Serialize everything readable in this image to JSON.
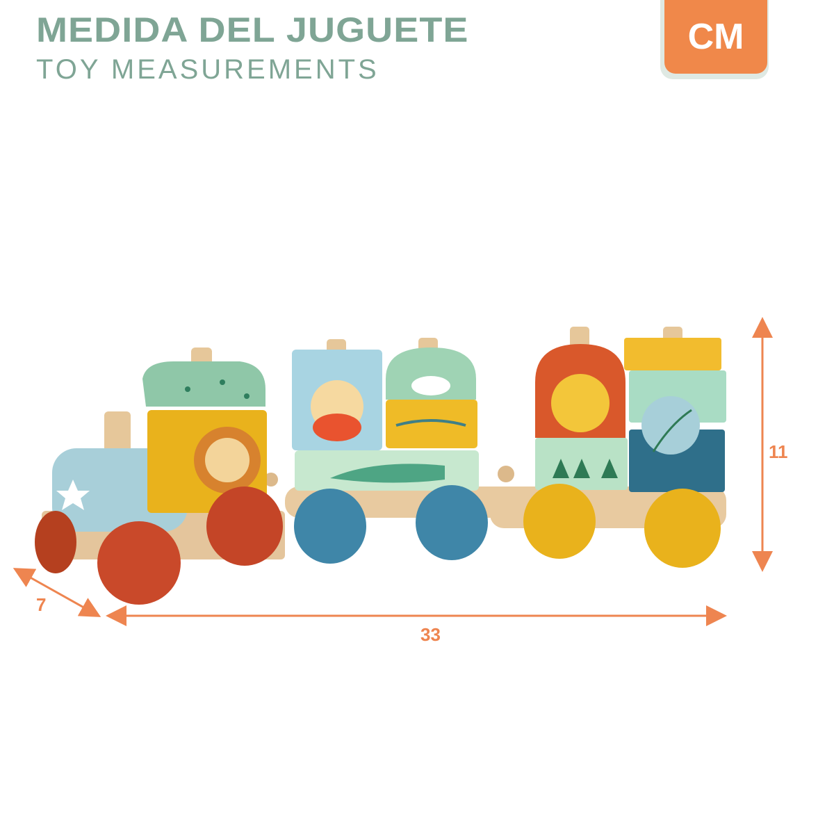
{
  "header": {
    "title": "MEDIDA DEL JUGUETE",
    "subtitle": "TOY MEASUREMENTS",
    "unit_badge": "CM"
  },
  "dimensions": {
    "depth": "7",
    "length": "33",
    "height": "11"
  },
  "colors": {
    "title": "#7fa595",
    "accent": "#f0884a",
    "wheel_red": "#c9492a",
    "wheel_blue": "#3f86a8",
    "wheel_yellow": "#e9b21c",
    "wood": "#e4c59c"
  }
}
